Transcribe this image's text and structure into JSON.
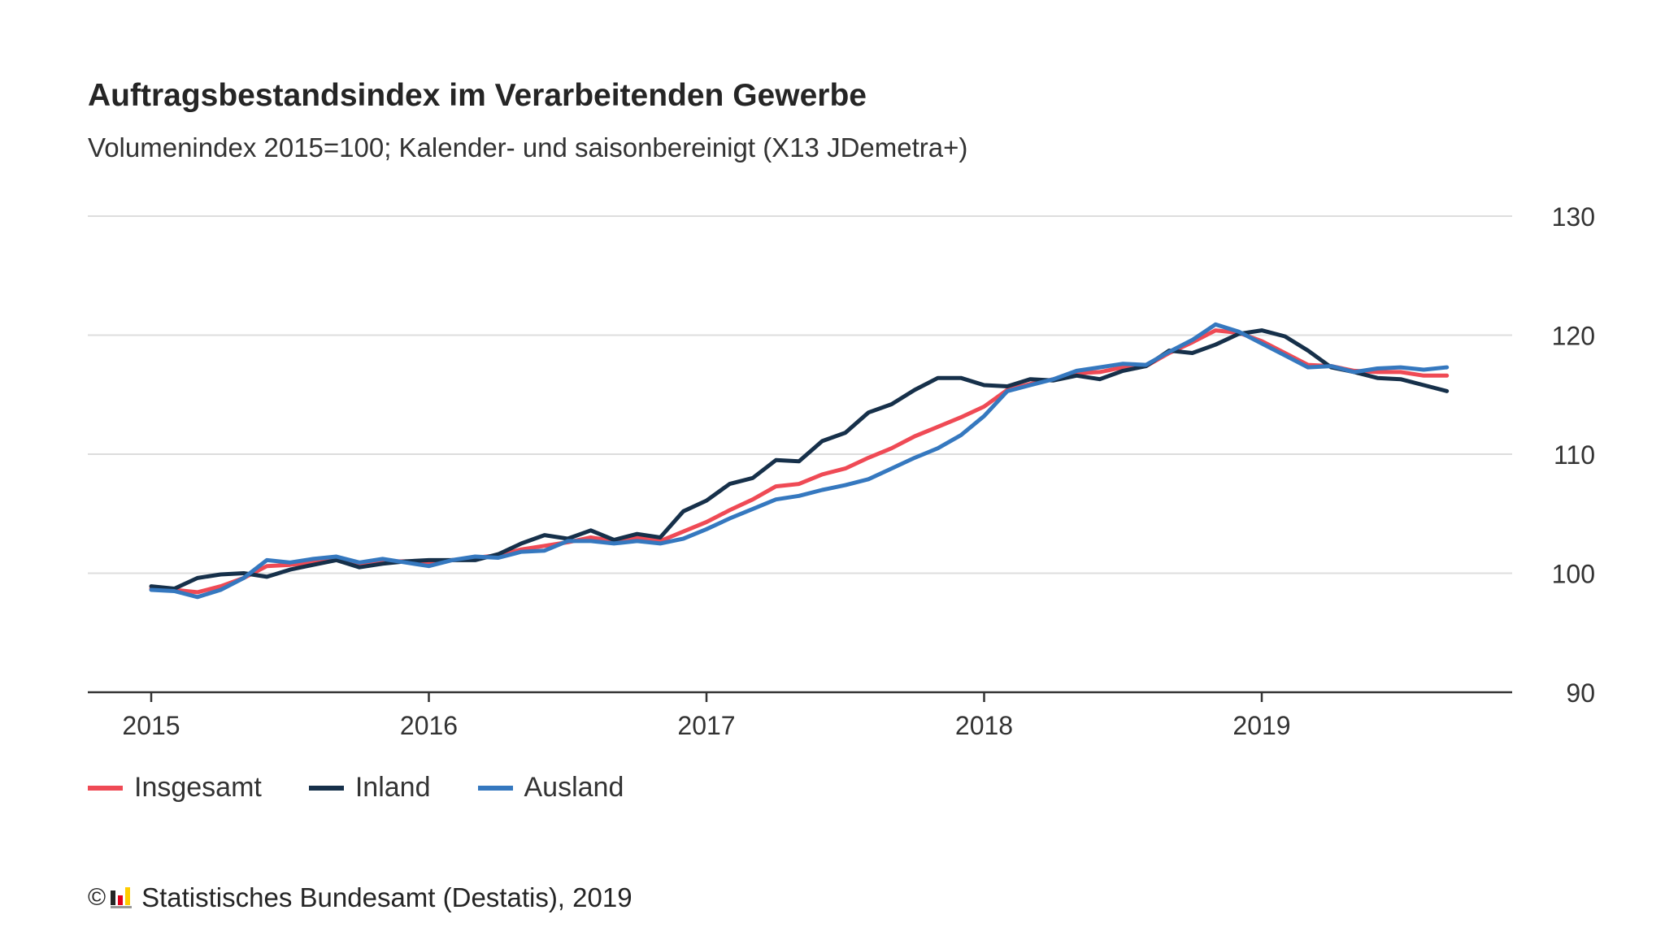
{
  "title": "Auftragsbestandsindex im Verarbeitenden Gewerbe",
  "subtitle": "Volumenindex 2015=100; Kalender- und saisonbereinigt (X13 JDemetra+)",
  "footer": {
    "copyright": "©",
    "source": "Statistisches Bundesamt (Destatis), 2019",
    "logo_icon": "destatis-logo-icon"
  },
  "colors": {
    "Insgesamt": "#ef4a55",
    "Inland": "#16304a",
    "Ausland": "#3578bf",
    "grid": "#dddddd",
    "axis": "#333333"
  },
  "chart_data": {
    "type": "line",
    "title": "Auftragsbestandsindex im Verarbeitenden Gewerbe",
    "subtitle": "Volumenindex 2015=100; Kalender- und saisonbereinigt (X13 JDemetra+)",
    "xlabel": "",
    "ylabel": "",
    "x_start": "2015-01",
    "x_end": "2019-09",
    "x_ticks": [
      "2015",
      "2016",
      "2017",
      "2018",
      "2019"
    ],
    "ylim": [
      90,
      130
    ],
    "y_ticks": [
      90,
      100,
      110,
      120,
      130
    ],
    "y_axis_side": "right",
    "grid": true,
    "legend_position": "bottom-left",
    "series": [
      {
        "name": "Insgesamt",
        "values": [
          98.7,
          98.6,
          98.4,
          98.9,
          99.6,
          100.6,
          100.7,
          100.9,
          101.2,
          100.8,
          101.0,
          101.0,
          100.8,
          101.1,
          101.3,
          101.5,
          102.0,
          102.3,
          102.6,
          103.0,
          102.7,
          103.0,
          102.7,
          103.5,
          104.3,
          105.3,
          106.2,
          107.3,
          107.5,
          108.3,
          108.8,
          109.7,
          110.5,
          111.5,
          112.3,
          113.1,
          114.0,
          115.4,
          115.9,
          116.3,
          116.8,
          116.9,
          117.3,
          117.4,
          118.5,
          119.4,
          120.4,
          120.2,
          119.5,
          118.5,
          117.5,
          117.4,
          117.0,
          116.9,
          116.9,
          116.6,
          116.6
        ]
      },
      {
        "name": "Inland",
        "values": [
          98.9,
          98.7,
          99.6,
          99.9,
          100.0,
          99.7,
          100.3,
          100.7,
          101.1,
          100.5,
          100.8,
          101.0,
          101.1,
          101.1,
          101.1,
          101.6,
          102.5,
          103.2,
          102.9,
          103.6,
          102.8,
          103.3,
          103.0,
          105.2,
          106.1,
          107.5,
          108.0,
          109.5,
          109.4,
          111.1,
          111.8,
          113.5,
          114.2,
          115.4,
          116.4,
          116.4,
          115.8,
          115.7,
          116.3,
          116.2,
          116.6,
          116.3,
          117.0,
          117.4,
          118.7,
          118.5,
          119.2,
          120.1,
          120.4,
          119.9,
          118.7,
          117.3,
          116.9,
          116.4,
          116.3,
          115.8,
          115.3
        ]
      },
      {
        "name": "Ausland",
        "values": [
          98.6,
          98.5,
          98.0,
          98.6,
          99.6,
          101.1,
          100.9,
          101.2,
          101.4,
          100.9,
          101.2,
          100.9,
          100.6,
          101.1,
          101.4,
          101.3,
          101.8,
          101.9,
          102.7,
          102.7,
          102.5,
          102.7,
          102.5,
          102.9,
          103.7,
          104.6,
          105.4,
          106.2,
          106.5,
          107.0,
          107.4,
          107.9,
          108.8,
          109.7,
          110.5,
          111.6,
          113.2,
          115.3,
          115.8,
          116.3,
          117.0,
          117.3,
          117.6,
          117.5,
          118.6,
          119.6,
          120.9,
          120.3,
          119.3,
          118.3,
          117.3,
          117.4,
          116.9,
          117.2,
          117.3,
          117.1,
          117.3
        ]
      }
    ]
  }
}
